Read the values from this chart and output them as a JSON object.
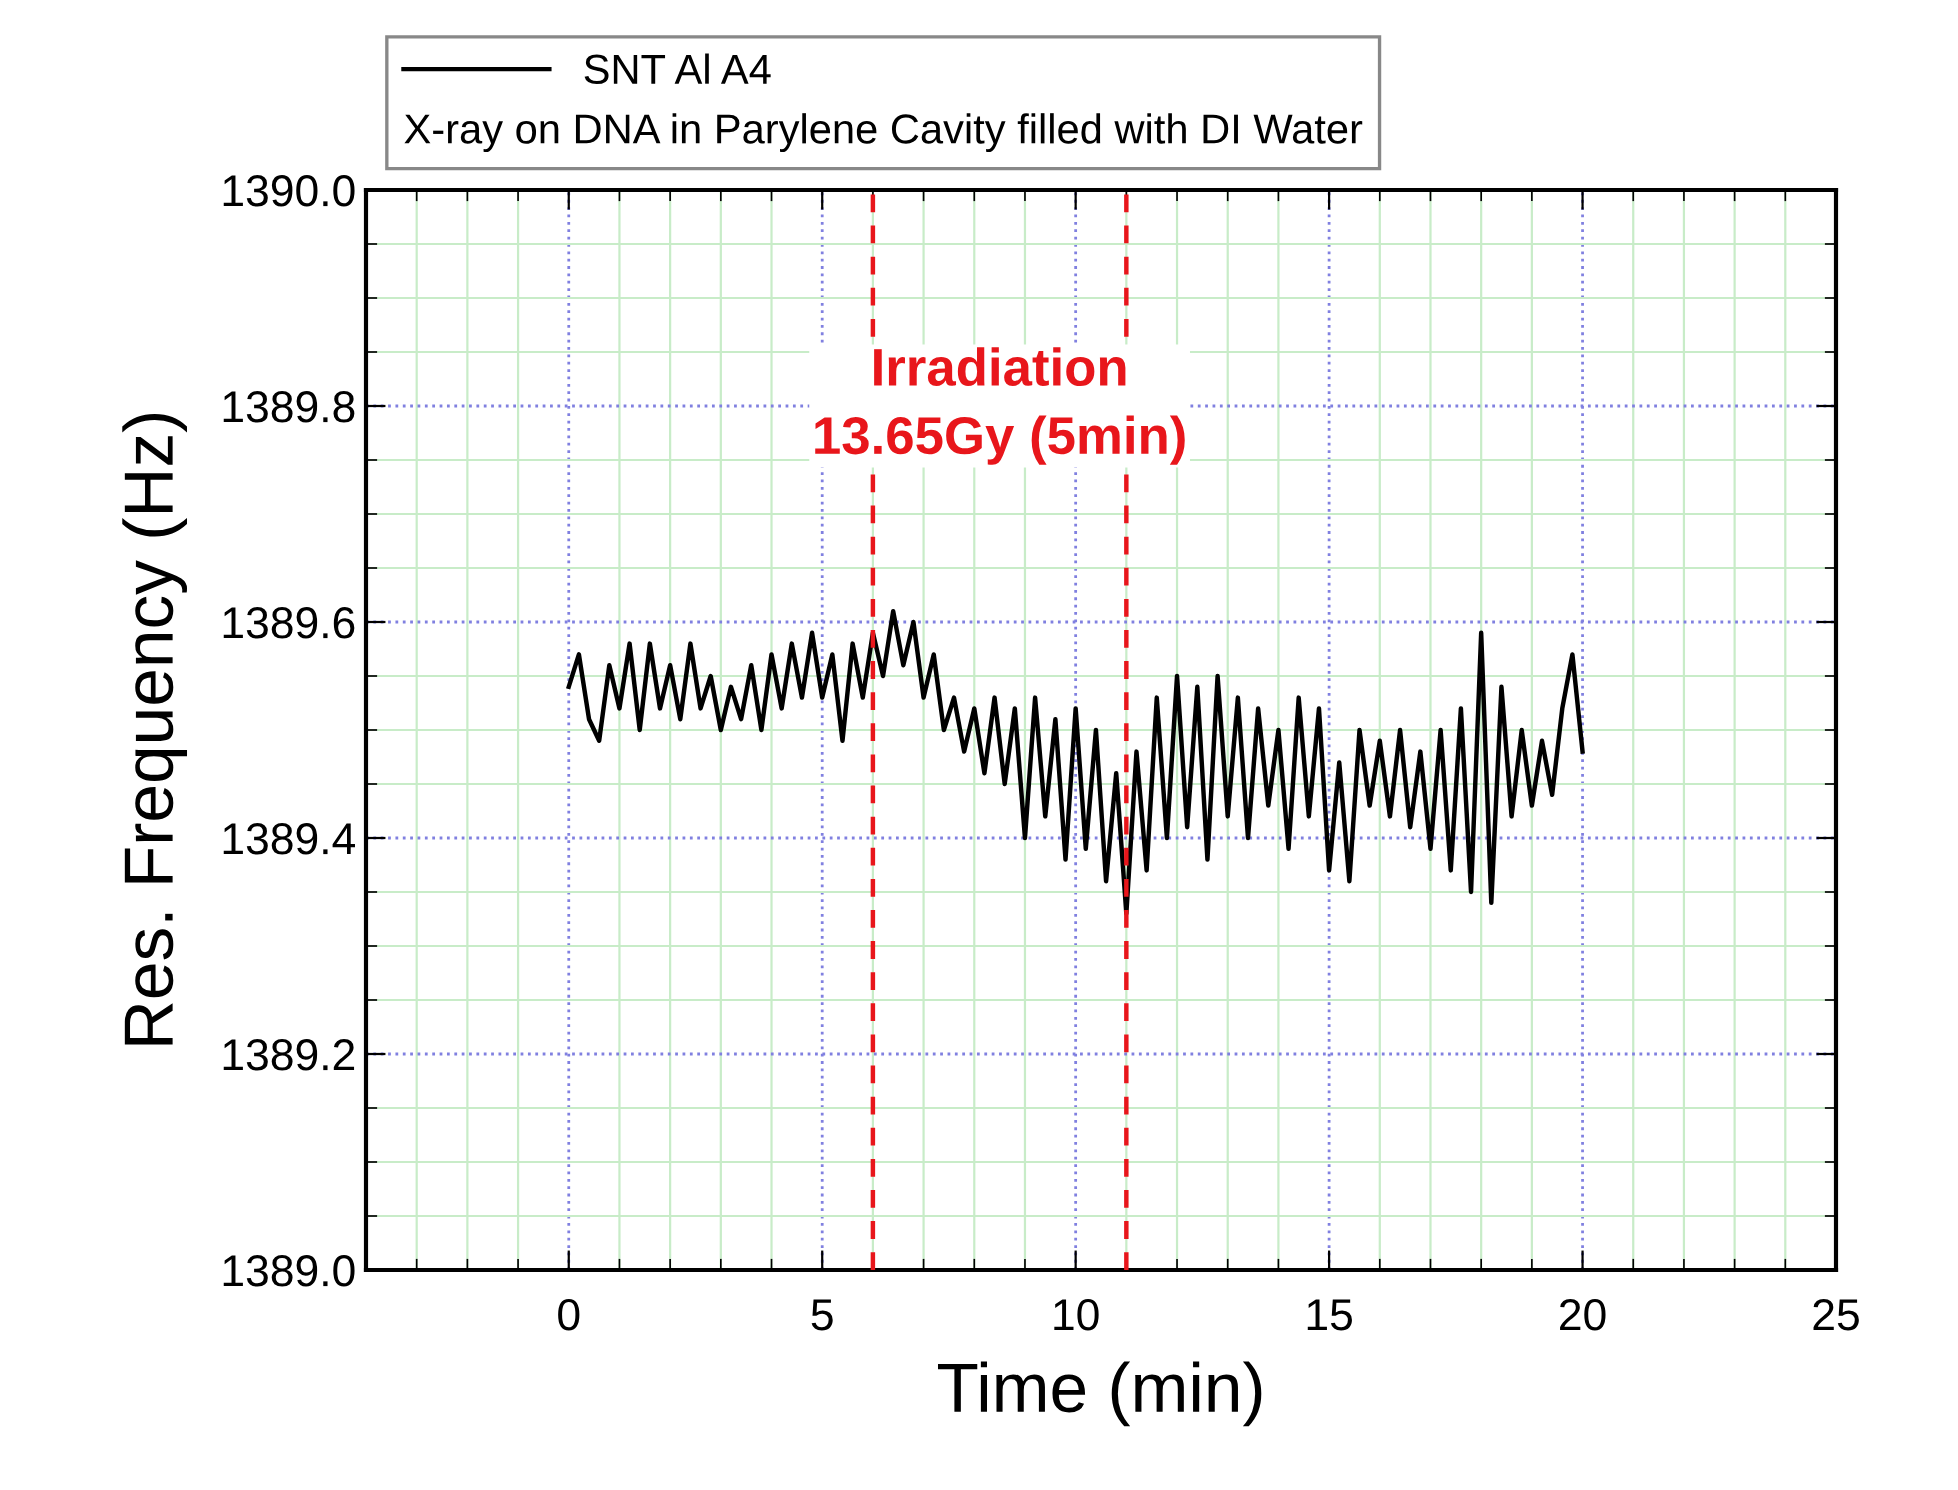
{
  "chart_data": {
    "type": "line",
    "xlabel": "Time (min)",
    "ylabel": "Res. Frequency (Hz)",
    "legend_title": "X-ray on DNA in Parylene Cavity filled with DI Water",
    "annotations": [
      "Irradiation\n13.65Gy (5min)"
    ],
    "x": [
      0.0,
      0.2,
      0.4,
      0.6,
      0.8,
      1.0,
      1.2,
      1.4,
      1.6,
      1.8,
      2.0,
      2.2,
      2.4,
      2.6,
      2.8,
      3.0,
      3.2,
      3.4,
      3.6,
      3.8,
      4.0,
      4.2,
      4.4,
      4.6,
      4.8,
      5.0,
      5.2,
      5.4,
      5.6,
      5.8,
      6.0,
      6.2,
      6.4,
      6.6,
      6.8,
      7.0,
      7.2,
      7.4,
      7.6,
      7.8,
      8.0,
      8.2,
      8.4,
      8.6,
      8.8,
      9.0,
      9.2,
      9.4,
      9.6,
      9.8,
      10.0,
      10.2,
      10.4,
      10.6,
      10.8,
      11.0,
      11.2,
      11.4,
      11.6,
      11.8,
      12.0,
      12.2,
      12.4,
      12.6,
      12.8,
      13.0,
      13.2,
      13.4,
      13.6,
      13.8,
      14.0,
      14.2,
      14.4,
      14.6,
      14.8,
      15.0,
      15.2,
      15.4,
      15.6,
      15.8,
      16.0,
      16.2,
      16.4,
      16.6,
      16.8,
      17.0,
      17.2,
      17.4,
      17.6,
      17.8,
      18.0,
      18.2,
      18.4,
      18.6,
      18.8,
      19.0,
      19.2,
      19.4,
      19.6,
      19.8,
      20.0
    ],
    "series": [
      {
        "name": "SNT Al A4",
        "color": "#000000",
        "values": [
          1389.54,
          1389.57,
          1389.51,
          1389.49,
          1389.56,
          1389.52,
          1389.58,
          1389.5,
          1389.58,
          1389.52,
          1389.56,
          1389.51,
          1389.58,
          1389.52,
          1389.55,
          1389.5,
          1389.54,
          1389.51,
          1389.56,
          1389.5,
          1389.57,
          1389.52,
          1389.58,
          1389.53,
          1389.59,
          1389.53,
          1389.57,
          1389.49,
          1389.58,
          1389.53,
          1389.59,
          1389.55,
          1389.61,
          1389.56,
          1389.6,
          1389.53,
          1389.57,
          1389.5,
          1389.53,
          1389.48,
          1389.52,
          1389.46,
          1389.53,
          1389.45,
          1389.52,
          1389.4,
          1389.53,
          1389.42,
          1389.51,
          1389.38,
          1389.52,
          1389.39,
          1389.5,
          1389.36,
          1389.46,
          1389.33,
          1389.48,
          1389.37,
          1389.53,
          1389.4,
          1389.55,
          1389.41,
          1389.54,
          1389.38,
          1389.55,
          1389.42,
          1389.53,
          1389.4,
          1389.52,
          1389.43,
          1389.5,
          1389.39,
          1389.53,
          1389.42,
          1389.52,
          1389.37,
          1389.47,
          1389.36,
          1389.5,
          1389.43,
          1389.49,
          1389.42,
          1389.5,
          1389.41,
          1389.48,
          1389.39,
          1389.5,
          1389.37,
          1389.52,
          1389.35,
          1389.59,
          1389.34,
          1389.54,
          1389.42,
          1389.5,
          1389.43,
          1389.49,
          1389.44,
          1389.52,
          1389.57,
          1389.48
        ]
      }
    ],
    "xlim": [
      -4,
      25
    ],
    "xticks": [
      0,
      5,
      10,
      15,
      20,
      25
    ],
    "ylim": [
      1389.0,
      1390.0
    ],
    "yticks": [
      {
        "value": 1389,
        "label": "1389.0"
      },
      1389.2,
      1389.4,
      1389.6,
      1389.8,
      {
        "value": 1390,
        "label": "1390.0"
      }
    ],
    "ref_lines": [
      {
        "axis": "x",
        "value": 6,
        "label": null,
        "color": "#e8161b",
        "line_style": "dashed"
      },
      {
        "axis": "x",
        "value": 11,
        "label": null,
        "color": "#e8161b",
        "line_style": "dashed"
      }
    ],
    "grid": true,
    "legend": "top",
    "marker": "none",
    "line_style": "solid"
  }
}
